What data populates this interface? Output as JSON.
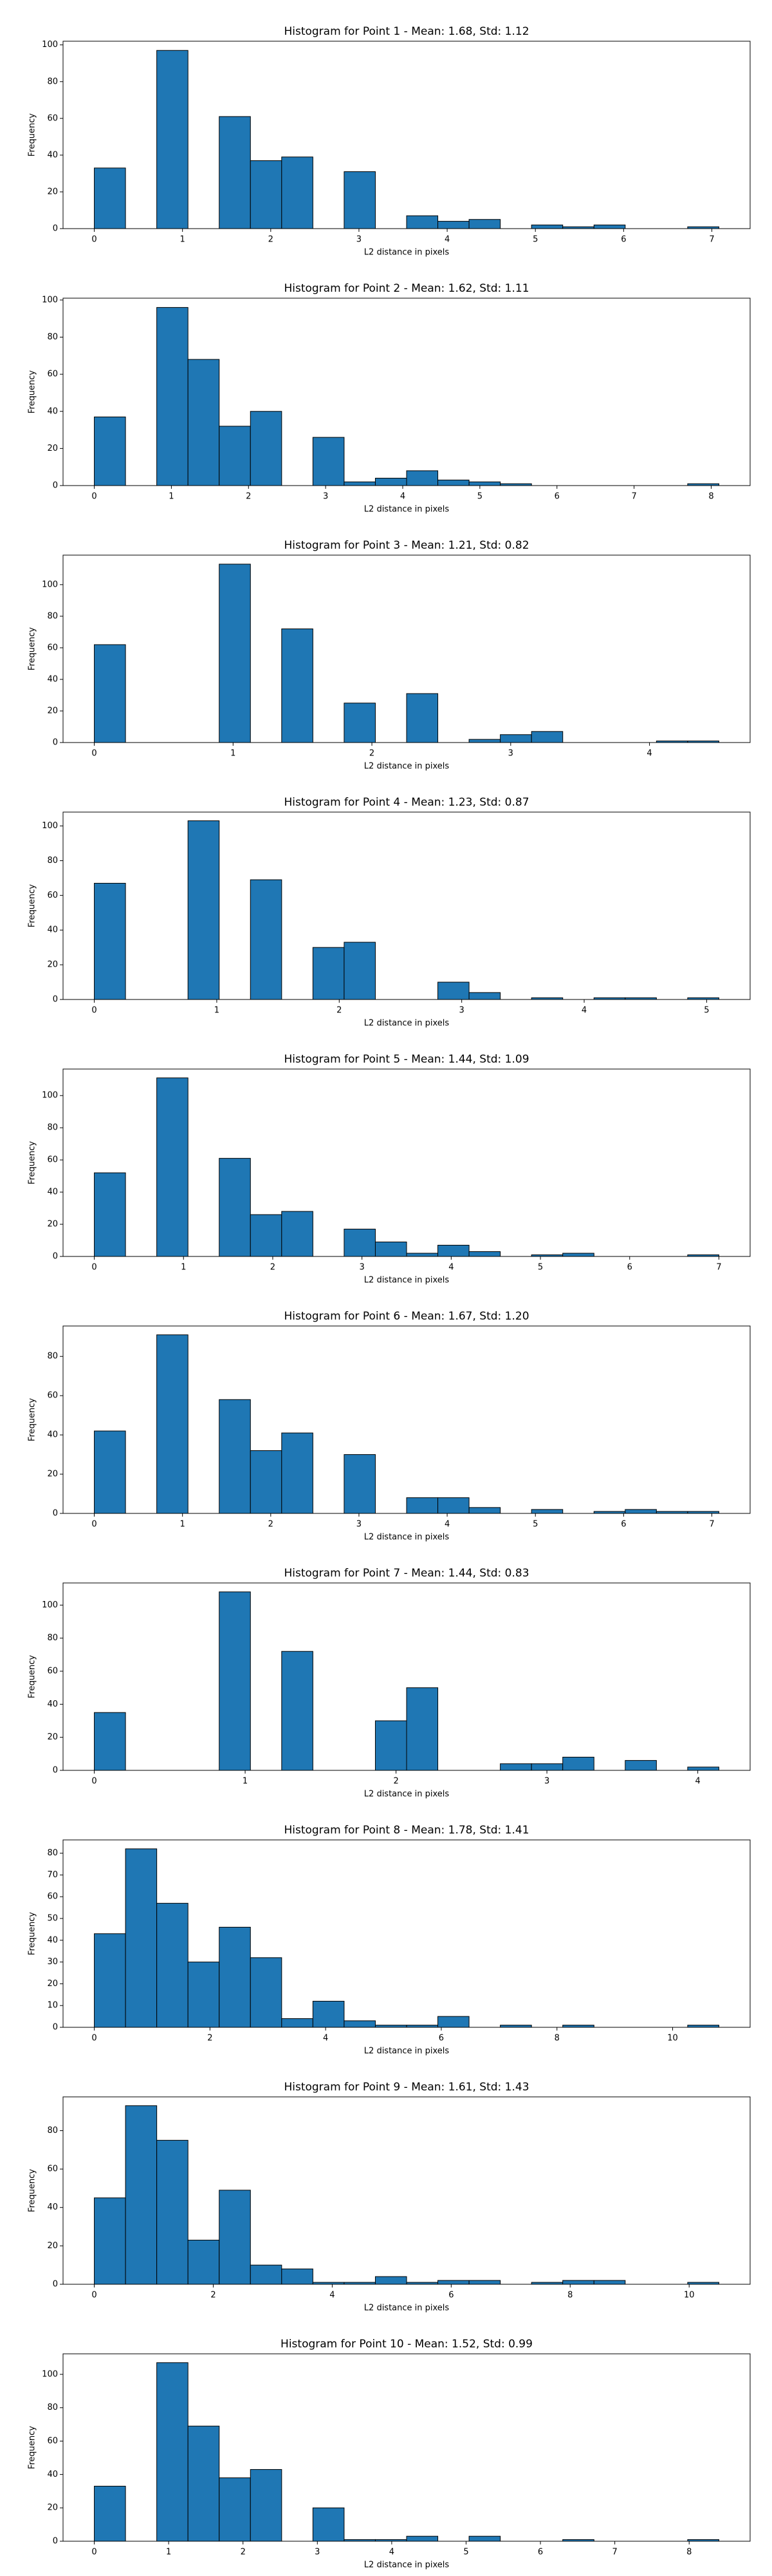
{
  "chart_data": [
    {
      "type": "histogram",
      "title": "Histogram for Point 1 - Mean: 1.68, Std: 1.12",
      "xlabel": "L2 distance in pixels",
      "ylabel": "Frequency",
      "color": "#1f77b4",
      "bins": [
        0,
        0.354,
        0.708,
        1.062,
        1.416,
        1.77,
        2.124,
        2.478,
        2.832,
        3.186,
        3.54,
        3.894,
        4.248,
        4.602,
        4.956,
        5.31,
        5.664,
        6.018,
        6.372,
        6.726,
        7.08
      ],
      "counts": [
        33,
        0,
        97,
        0,
        61,
        37,
        39,
        0,
        31,
        0,
        7,
        4,
        5,
        0,
        2,
        1,
        2,
        0,
        0,
        1
      ],
      "xlim": [
        -0.354,
        7.434
      ],
      "xticks": [
        0,
        1,
        2,
        3,
        4,
        5,
        6,
        7
      ],
      "ylim": [
        0,
        102
      ],
      "yticks": [
        0,
        20,
        40,
        60,
        80,
        100
      ]
    },
    {
      "type": "histogram",
      "title": "Histogram for Point 2 - Mean: 1.62, Std: 1.11",
      "xlabel": "L2 distance in pixels",
      "ylabel": "Frequency",
      "color": "#1f77b4",
      "bins": [
        0,
        0.405,
        0.81,
        1.215,
        1.62,
        2.025,
        2.43,
        2.835,
        3.24,
        3.645,
        4.05,
        4.455,
        4.86,
        5.265,
        5.67,
        6.075,
        6.48,
        6.885,
        7.29,
        7.695,
        8.1
      ],
      "counts": [
        37,
        0,
        96,
        68,
        32,
        40,
        0,
        26,
        2,
        4,
        8,
        3,
        2,
        1,
        0,
        0,
        0,
        0,
        0,
        1
      ],
      "xlim": [
        -0.405,
        8.505
      ],
      "xticks": [
        0,
        1,
        2,
        3,
        4,
        5,
        6,
        7,
        8
      ],
      "ylim": [
        0,
        101
      ],
      "yticks": [
        0,
        20,
        40,
        60,
        80,
        100
      ]
    },
    {
      "type": "histogram",
      "title": "Histogram for Point 3 - Mean: 1.21, Std: 0.82",
      "xlabel": "L2 distance in pixels",
      "ylabel": "Frequency",
      "color": "#1f77b4",
      "bins": [
        0,
        0.225,
        0.45,
        0.675,
        0.9,
        1.125,
        1.35,
        1.575,
        1.8,
        2.025,
        2.25,
        2.475,
        2.7,
        2.925,
        3.15,
        3.375,
        3.6,
        3.825,
        4.05,
        4.275,
        4.5
      ],
      "counts": [
        62,
        0,
        0,
        0,
        113,
        0,
        72,
        0,
        25,
        0,
        31,
        0,
        2,
        5,
        7,
        0,
        0,
        0,
        1,
        1
      ],
      "xlim": [
        -0.225,
        4.725
      ],
      "xticks": [
        0,
        1,
        2,
        3,
        4
      ],
      "ylim": [
        0,
        118.7
      ],
      "yticks": [
        0,
        20,
        40,
        60,
        80,
        100
      ]
    },
    {
      "type": "histogram",
      "title": "Histogram for Point 4 - Mean: 1.23, Std: 0.87",
      "xlabel": "L2 distance in pixels",
      "ylabel": "Frequency",
      "color": "#1f77b4",
      "bins": [
        0,
        0.255,
        0.51,
        0.765,
        1.02,
        1.275,
        1.53,
        1.785,
        2.04,
        2.295,
        2.55,
        2.805,
        3.06,
        3.315,
        3.57,
        3.825,
        4.08,
        4.335,
        4.59,
        4.845,
        5.1
      ],
      "counts": [
        67,
        0,
        0,
        103,
        0,
        69,
        0,
        30,
        33,
        0,
        0,
        10,
        4,
        0,
        1,
        0,
        1,
        1,
        0,
        1
      ],
      "xlim": [
        -0.255,
        5.355
      ],
      "xticks": [
        0,
        1,
        2,
        3,
        4,
        5
      ],
      "ylim": [
        0,
        108
      ],
      "yticks": [
        0,
        20,
        40,
        60,
        80,
        100
      ]
    },
    {
      "type": "histogram",
      "title": "Histogram for Point 5 - Mean: 1.44, Std: 1.09",
      "xlabel": "L2 distance in pixels",
      "ylabel": "Frequency",
      "color": "#1f77b4",
      "bins": [
        0,
        0.35,
        0.7,
        1.05,
        1.4,
        1.75,
        2.1,
        2.45,
        2.8,
        3.15,
        3.5,
        3.85,
        4.2,
        4.55,
        4.9,
        5.25,
        5.6,
        5.95,
        6.3,
        6.65,
        7
      ],
      "counts": [
        52,
        0,
        111,
        0,
        61,
        26,
        28,
        0,
        17,
        9,
        2,
        7,
        3,
        0,
        1,
        2,
        0,
        0,
        0,
        1
      ],
      "xlim": [
        -0.35,
        7.35
      ],
      "xticks": [
        0,
        1,
        2,
        3,
        4,
        5,
        6,
        7
      ],
      "ylim": [
        0,
        116.5
      ],
      "yticks": [
        0,
        20,
        40,
        60,
        80,
        100
      ]
    },
    {
      "type": "histogram",
      "title": "Histogram for Point 6 - Mean: 1.67, Std: 1.20",
      "xlabel": "L2 distance in pixels",
      "ylabel": "Frequency",
      "color": "#1f77b4",
      "bins": [
        0,
        0.354,
        0.708,
        1.062,
        1.416,
        1.77,
        2.124,
        2.478,
        2.832,
        3.186,
        3.54,
        3.894,
        4.248,
        4.602,
        4.956,
        5.31,
        5.664,
        6.018,
        6.372,
        6.726,
        7.08
      ],
      "counts": [
        42,
        0,
        91,
        0,
        58,
        32,
        41,
        0,
        30,
        0,
        8,
        8,
        3,
        0,
        2,
        0,
        1,
        2,
        1,
        1
      ],
      "xlim": [
        -0.354,
        7.434
      ],
      "xticks": [
        0,
        1,
        2,
        3,
        4,
        5,
        6,
        7
      ],
      "ylim": [
        0,
        95.5
      ],
      "yticks": [
        0,
        20,
        40,
        60,
        80
      ]
    },
    {
      "type": "histogram",
      "title": "Histogram for Point 7 - Mean: 1.44, Std: 0.83",
      "xlabel": "L2 distance in pixels",
      "ylabel": "Frequency",
      "color": "#1f77b4",
      "bins": [
        0,
        0.207,
        0.414,
        0.621,
        0.828,
        1.035,
        1.242,
        1.449,
        1.656,
        1.863,
        2.07,
        2.277,
        2.484,
        2.691,
        2.898,
        3.105,
        3.312,
        3.519,
        3.726,
        3.933,
        4.14
      ],
      "counts": [
        35,
        0,
        0,
        0,
        108,
        0,
        72,
        0,
        0,
        30,
        50,
        0,
        0,
        4,
        4,
        8,
        0,
        6,
        0,
        2
      ],
      "xlim": [
        -0.207,
        4.347
      ],
      "xticks": [
        0,
        1,
        2,
        3,
        4
      ],
      "ylim": [
        0,
        113.4
      ],
      "yticks": [
        0,
        20,
        40,
        60,
        80,
        100
      ]
    },
    {
      "type": "histogram",
      "title": "Histogram for Point 8 - Mean: 1.78, Std: 1.41",
      "xlabel": "L2 distance in pixels",
      "ylabel": "Frequency",
      "color": "#1f77b4",
      "bins": [
        0,
        0.54,
        1.08,
        1.62,
        2.16,
        2.7,
        3.24,
        3.78,
        4.32,
        4.86,
        5.4,
        5.94,
        6.48,
        7.02,
        7.56,
        8.1,
        8.64,
        9.18,
        9.72,
        10.26,
        10.8
      ],
      "counts": [
        43,
        82,
        57,
        30,
        46,
        32,
        4,
        12,
        3,
        1,
        1,
        5,
        0,
        1,
        0,
        1,
        0,
        0,
        0,
        1
      ],
      "xlim": [
        -0.54,
        11.34
      ],
      "xticks": [
        0,
        2,
        4,
        6,
        8,
        10
      ],
      "ylim": [
        0,
        86.1
      ],
      "yticks": [
        0,
        10,
        20,
        30,
        40,
        50,
        60,
        70,
        80
      ]
    },
    {
      "type": "histogram",
      "title": "Histogram for Point 9 - Mean: 1.61, Std: 1.43",
      "xlabel": "L2 distance in pixels",
      "ylabel": "Frequency",
      "color": "#1f77b4",
      "bins": [
        0,
        0.525,
        1.05,
        1.575,
        2.1,
        2.625,
        3.15,
        3.675,
        4.2,
        4.725,
        5.25,
        5.775,
        6.3,
        6.825,
        7.35,
        7.875,
        8.4,
        8.925,
        9.45,
        9.975,
        10.5
      ],
      "counts": [
        45,
        93,
        75,
        23,
        49,
        10,
        8,
        1,
        1,
        4,
        1,
        2,
        2,
        0,
        1,
        2,
        2,
        0,
        0,
        1
      ],
      "xlim": [
        -0.525,
        11.025
      ],
      "xticks": [
        0,
        2,
        4,
        6,
        8,
        10
      ],
      "ylim": [
        0,
        97.6
      ],
      "yticks": [
        0,
        20,
        40,
        60,
        80
      ]
    },
    {
      "type": "histogram",
      "title": "Histogram for Point 10 - Mean: 1.52, Std: 0.99",
      "xlabel": "L2 distance in pixels",
      "ylabel": "Frequency",
      "color": "#1f77b4",
      "bins": [
        0,
        0.42,
        0.84,
        1.26,
        1.68,
        2.1,
        2.52,
        2.94,
        3.36,
        3.78,
        4.2,
        4.62,
        5.04,
        5.46,
        5.88,
        6.3,
        6.72,
        7.14,
        7.56,
        7.98,
        8.4
      ],
      "counts": [
        33,
        0,
        107,
        69,
        38,
        43,
        0,
        20,
        1,
        1,
        3,
        0,
        3,
        0,
        0,
        1,
        0,
        0,
        0,
        1
      ],
      "xlim": [
        -0.42,
        8.82
      ],
      "xticks": [
        0,
        1,
        2,
        3,
        4,
        5,
        6,
        7,
        8
      ],
      "ylim": [
        0,
        112.3
      ],
      "yticks": [
        0,
        20,
        40,
        60,
        80,
        100
      ]
    }
  ]
}
